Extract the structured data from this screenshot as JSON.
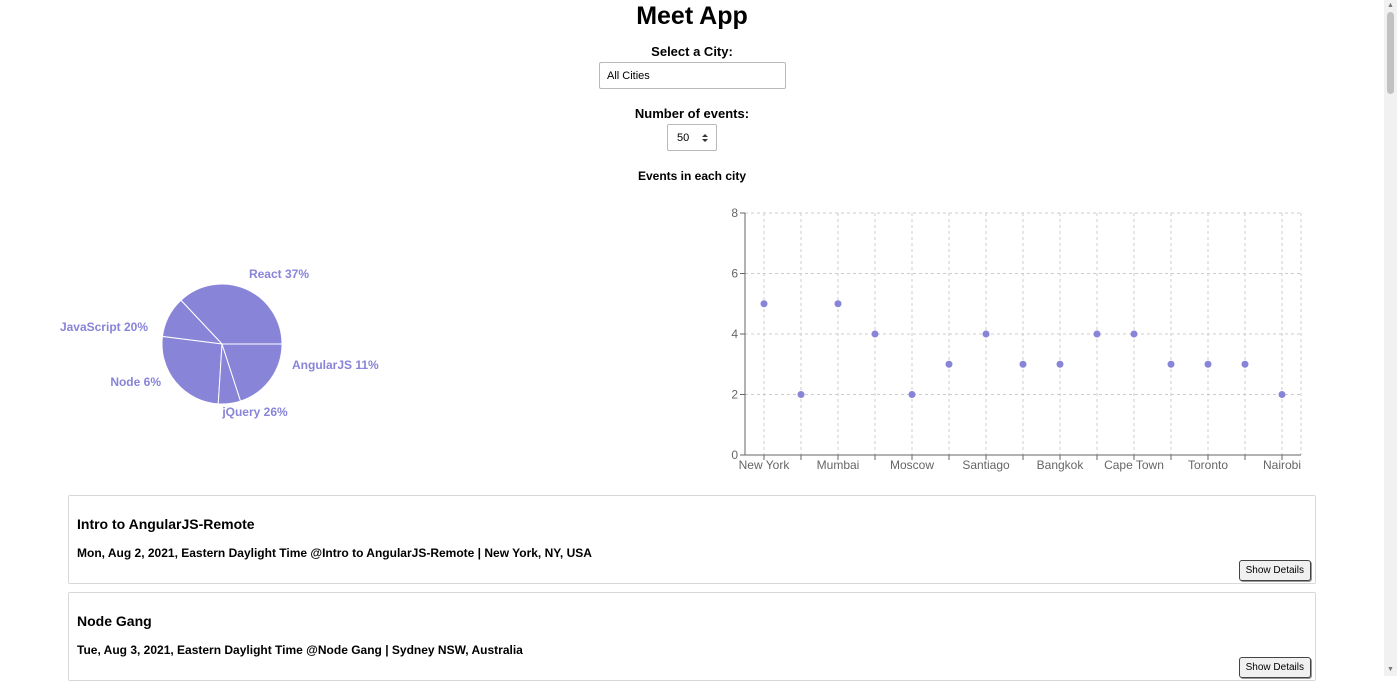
{
  "app": {
    "title": "Meet App"
  },
  "city_filter": {
    "label": "Select a City:",
    "value": "All Cities"
  },
  "events_count": {
    "label": "Number of events:",
    "value": "50"
  },
  "chart_heading": "Events in each city",
  "colors": {
    "accent": "#8884d8",
    "axis": "#666666",
    "grid": "#cccccc"
  },
  "chart_data": [
    {
      "type": "pie",
      "labels": [
        "React",
        "AngularJS",
        "jQuery",
        "Node",
        "JavaScript"
      ],
      "values": [
        37,
        11,
        26,
        6,
        20
      ],
      "slice_labels": [
        "React 37%",
        "AngularJS 11%",
        "jQuery 26%",
        "Node 6%",
        "JavaScript 20%"
      ]
    },
    {
      "type": "scatter",
      "x_tick_labels": [
        "New York",
        "Mumbai",
        "Moscow",
        "Santiago",
        "Bangkok",
        "Cape Town",
        "Toronto",
        "Nairobi"
      ],
      "x": [
        "New York",
        "",
        "Mumbai",
        "",
        "Moscow",
        "",
        "Santiago",
        "",
        "Bangkok",
        "",
        "Cape Town",
        "",
        "Toronto",
        "",
        "Nairobi"
      ],
      "y": [
        5,
        2,
        5,
        4,
        2,
        3,
        4,
        3,
        3,
        4,
        4,
        3,
        3,
        3,
        2
      ],
      "y_ticks": [
        "0",
        "2",
        "4",
        "6",
        "8"
      ],
      "ylim": [
        0,
        8
      ],
      "grid": true
    }
  ],
  "events": [
    {
      "title": "Intro to AngularJS-Remote",
      "meta": "Mon, Aug 2, 2021, Eastern Daylight Time @Intro to AngularJS-Remote | New York, NY, USA",
      "button": "Show Details"
    },
    {
      "title": "Node Gang",
      "meta": "Tue, Aug 3, 2021, Eastern Daylight Time @Node Gang | Sydney NSW, Australia",
      "button": "Show Details"
    }
  ]
}
